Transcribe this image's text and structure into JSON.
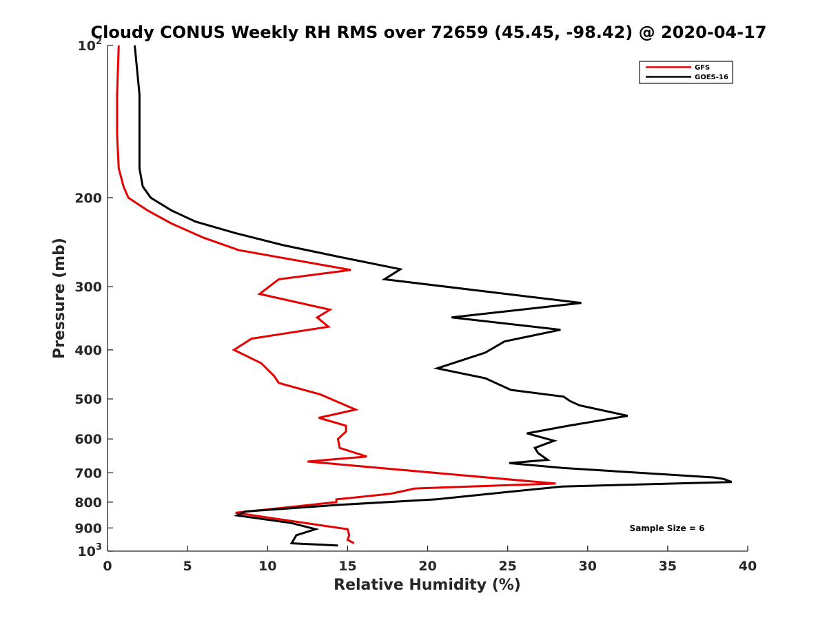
{
  "chart_data": {
    "type": "line",
    "title": "Cloudy CONUS Weekly RH RMS over 72659 (45.45, -98.42) @ 2020-04-17",
    "xlabel": "Relative Humidity (%)",
    "ylabel": "Pressure (mb)",
    "xlim": [
      0,
      40
    ],
    "ylim": [
      100,
      1000
    ],
    "y_scale": "log",
    "y_reversed": true,
    "grid": false,
    "legend_position": "top-right",
    "x_ticks": [
      0,
      5,
      10,
      15,
      20,
      25,
      30,
      35,
      40
    ],
    "x_tick_labels": [
      "0",
      "5",
      "10",
      "15",
      "20",
      "25",
      "30",
      "35",
      "40"
    ],
    "y_ticks": [
      100,
      200,
      300,
      400,
      500,
      600,
      700,
      800,
      900,
      1000
    ],
    "y_tick_labels": [
      {
        "base": "10",
        "sup": "2"
      },
      {
        "base": "200",
        "sup": ""
      },
      {
        "base": "300",
        "sup": ""
      },
      {
        "base": "400",
        "sup": ""
      },
      {
        "base": "500",
        "sup": ""
      },
      {
        "base": "600",
        "sup": ""
      },
      {
        "base": "700",
        "sup": ""
      },
      {
        "base": "800",
        "sup": ""
      },
      {
        "base": "900",
        "sup": ""
      },
      {
        "base": "10",
        "sup": "3"
      }
    ],
    "annotation": "Sample Size = 6",
    "series": [
      {
        "name": "GFS",
        "color": "#e60000",
        "points": [
          [
            0.7,
            100
          ],
          [
            0.6,
            125
          ],
          [
            0.6,
            150
          ],
          [
            0.7,
            175
          ],
          [
            1.0,
            190
          ],
          [
            1.3,
            200
          ],
          [
            2.5,
            212
          ],
          [
            4.0,
            225
          ],
          [
            6.0,
            240
          ],
          [
            8.2,
            254
          ],
          [
            15.2,
            278
          ],
          [
            10.7,
            290
          ],
          [
            9.5,
            310
          ],
          [
            13.9,
            333
          ],
          [
            13.1,
            345
          ],
          [
            13.8,
            360
          ],
          [
            9.0,
            380
          ],
          [
            7.9,
            400
          ],
          [
            9.6,
            425
          ],
          [
            10.4,
            450
          ],
          [
            10.7,
            465
          ],
          [
            13.3,
            490
          ],
          [
            15.5,
            525
          ],
          [
            13.2,
            545
          ],
          [
            14.9,
            565
          ],
          [
            14.9,
            580
          ],
          [
            14.4,
            600
          ],
          [
            14.5,
            625
          ],
          [
            16.2,
            650
          ],
          [
            12.5,
            665
          ],
          [
            28.0,
            735
          ],
          [
            19.2,
            752
          ],
          [
            17.7,
            770
          ],
          [
            14.3,
            790
          ],
          [
            14.3,
            800
          ],
          [
            8.0,
            840
          ],
          [
            15.0,
            905
          ],
          [
            15.1,
            930
          ],
          [
            15.0,
            950
          ],
          [
            15.4,
            965
          ]
        ]
      },
      {
        "name": "GOES-16",
        "color": "#000000",
        "points": [
          [
            1.7,
            100
          ],
          [
            2.0,
            125
          ],
          [
            2.0,
            150
          ],
          [
            2.0,
            175
          ],
          [
            2.2,
            190
          ],
          [
            2.7,
            200
          ],
          [
            4.0,
            212
          ],
          [
            5.5,
            223
          ],
          [
            8.0,
            235
          ],
          [
            10.9,
            248
          ],
          [
            14.5,
            262
          ],
          [
            18.3,
            277
          ],
          [
            17.3,
            290
          ],
          [
            29.6,
            323
          ],
          [
            21.5,
            345
          ],
          [
            28.3,
            365
          ],
          [
            24.8,
            385
          ],
          [
            23.6,
            405
          ],
          [
            20.6,
            435
          ],
          [
            23.6,
            455
          ],
          [
            25.2,
            480
          ],
          [
            28.5,
            495
          ],
          [
            28.9,
            505
          ],
          [
            29.5,
            515
          ],
          [
            32.5,
            540
          ],
          [
            28.8,
            565
          ],
          [
            26.2,
            585
          ],
          [
            27.9,
            605
          ],
          [
            26.7,
            625
          ],
          [
            26.9,
            640
          ],
          [
            27.5,
            660
          ],
          [
            25.1,
            670
          ],
          [
            28.5,
            685
          ],
          [
            37.9,
            715
          ],
          [
            38.5,
            720
          ],
          [
            39.0,
            730
          ],
          [
            28.4,
            745
          ],
          [
            24.8,
            765
          ],
          [
            20.5,
            790
          ],
          [
            14.5,
            810
          ],
          [
            8.6,
            835
          ],
          [
            8.1,
            850
          ],
          [
            11.5,
            880
          ],
          [
            13.0,
            905
          ],
          [
            11.8,
            930
          ],
          [
            11.5,
            965
          ],
          [
            14.4,
            975
          ]
        ]
      }
    ]
  }
}
